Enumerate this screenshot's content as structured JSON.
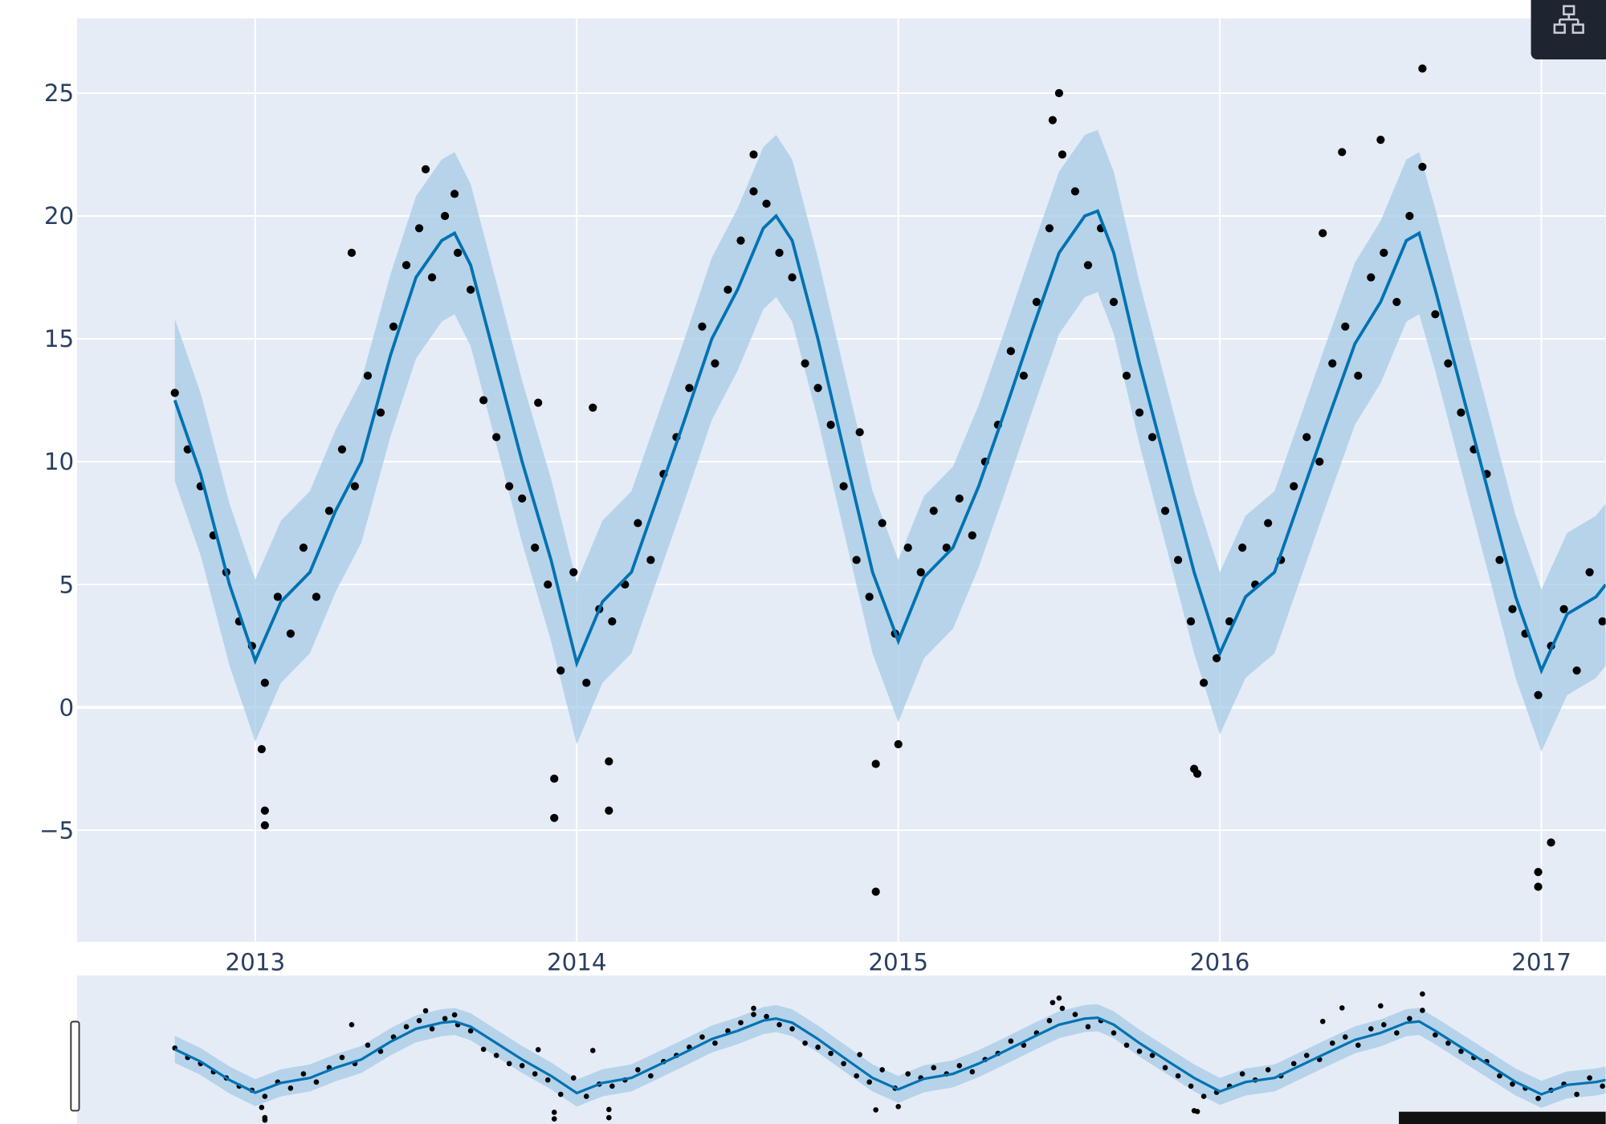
{
  "chart_data": {
    "type": "forecast",
    "xlim": [
      2012.446,
      2017.2
    ],
    "ylim": [
      -9.54,
      28.04
    ],
    "xticks": [
      2013,
      2014,
      2015,
      2016,
      2017
    ],
    "yticks": [
      {
        "value": -5,
        "label": "−5"
      },
      0,
      5,
      10,
      15,
      20,
      25
    ],
    "grid": true,
    "range_slider": true,
    "points": {
      "color": "#000000",
      "x": [
        2012.75,
        2012.79,
        2012.83,
        2012.87,
        2012.91,
        2012.95,
        2012.99,
        2013.03,
        2013.07,
        2013.11,
        2013.15,
        2013.19,
        2013.23,
        2013.27,
        2013.31,
        2013.35,
        2013.39,
        2013.43,
        2013.47,
        2013.51,
        2013.55,
        2013.59,
        2013.63,
        2013.67,
        2013.71,
        2013.75,
        2013.79,
        2013.83,
        2013.87,
        2013.91,
        2013.95,
        2013.99,
        2014.03,
        2014.07,
        2014.11,
        2014.15,
        2014.19,
        2014.23,
        2014.27,
        2014.31,
        2014.35,
        2014.39,
        2014.43,
        2014.47,
        2014.51,
        2014.55,
        2014.59,
        2014.63,
        2014.67,
        2014.71,
        2014.75,
        2014.79,
        2014.83,
        2014.87,
        2014.91,
        2014.95,
        2014.99,
        2015.03,
        2015.07,
        2015.11,
        2015.15,
        2015.19,
        2015.23,
        2015.27,
        2015.31,
        2015.35,
        2015.39,
        2015.43,
        2015.47,
        2015.51,
        2015.55,
        2015.59,
        2015.63,
        2015.67,
        2015.71,
        2015.75,
        2015.79,
        2015.83,
        2015.87,
        2015.91,
        2015.95,
        2015.99,
        2016.03,
        2016.07,
        2016.11,
        2016.15,
        2016.19,
        2016.23,
        2016.27,
        2016.31,
        2016.35,
        2016.39,
        2016.43,
        2016.47,
        2016.51,
        2016.55,
        2016.59,
        2016.63,
        2016.67,
        2016.71,
        2016.75,
        2016.79,
        2016.83,
        2016.87,
        2016.91,
        2016.95,
        2016.99,
        2017.03,
        2017.07,
        2017.11,
        2017.15,
        2017.19,
        2013.03,
        2013.03,
        2013.02,
        2013.93,
        2013.93,
        2014.1,
        2014.1,
        2014.93,
        2014.93,
        2015.0,
        2015.5,
        2015.48,
        2016.63,
        2016.99,
        2016.99,
        2017.03,
        2015.93,
        2015.92,
        2014.05,
        2016.38,
        2016.5,
        2013.62,
        2013.53,
        2014.55,
        2013.3,
        2014.88,
        2016.32,
        2013.88
      ],
      "values": [
        12.8,
        10.5,
        9.0,
        7.0,
        5.5,
        3.5,
        2.5,
        1.0,
        4.5,
        3.0,
        6.5,
        4.5,
        8.0,
        10.5,
        9.0,
        13.5,
        12.0,
        15.5,
        18.0,
        19.5,
        17.5,
        20.0,
        18.5,
        17.0,
        12.5,
        11.0,
        9.0,
        8.5,
        6.5,
        5.0,
        1.5,
        5.5,
        1.0,
        4.0,
        3.5,
        5.0,
        7.5,
        6.0,
        9.5,
        11.0,
        13.0,
        15.5,
        14.0,
        17.0,
        19.0,
        21.0,
        20.5,
        18.5,
        17.5,
        14.0,
        13.0,
        11.5,
        9.0,
        6.0,
        4.5,
        7.5,
        3.0,
        6.5,
        5.5,
        8.0,
        6.5,
        8.5,
        7.0,
        10.0,
        11.5,
        14.5,
        13.5,
        16.5,
        19.5,
        22.5,
        21.0,
        18.0,
        19.5,
        16.5,
        13.5,
        12.0,
        11.0,
        8.0,
        6.0,
        3.5,
        1.0,
        2.0,
        3.5,
        6.5,
        5.0,
        7.5,
        6.0,
        9.0,
        11.0,
        10.0,
        14.0,
        15.5,
        13.5,
        17.5,
        18.5,
        16.5,
        20.0,
        22.0,
        16.0,
        14.0,
        12.0,
        10.5,
        9.5,
        6.0,
        4.0,
        3.0,
        0.5,
        2.5,
        4.0,
        1.5,
        5.5,
        3.5,
        -4.8,
        -4.2,
        -1.7,
        -4.5,
        -2.9,
        -4.2,
        -2.2,
        -7.5,
        -2.3,
        -1.5,
        25.0,
        23.9,
        26.0,
        -7.3,
        -6.7,
        -5.5,
        -2.7,
        -2.5,
        12.2,
        22.6,
        23.1,
        20.9,
        21.9,
        22.5,
        18.5,
        11.2,
        19.3,
        12.4
      ]
    },
    "forecast": {
      "color": "#0072b2",
      "band_color": "#a6cbe6",
      "x": [
        2012.75,
        2012.83,
        2012.92,
        2013.0,
        2013.08,
        2013.17,
        2013.25,
        2013.33,
        2013.42,
        2013.5,
        2013.58,
        2013.62,
        2013.67,
        2013.75,
        2013.83,
        2013.92,
        2014.0,
        2014.08,
        2014.17,
        2014.25,
        2014.33,
        2014.42,
        2014.5,
        2014.58,
        2014.62,
        2014.67,
        2014.75,
        2014.83,
        2014.92,
        2015.0,
        2015.08,
        2015.17,
        2015.25,
        2015.33,
        2015.42,
        2015.5,
        2015.58,
        2015.62,
        2015.67,
        2015.75,
        2015.83,
        2015.92,
        2016.0,
        2016.08,
        2016.17,
        2016.25,
        2016.33,
        2016.42,
        2016.5,
        2016.58,
        2016.62,
        2016.67,
        2016.75,
        2016.83,
        2016.92,
        2017.0,
        2017.08,
        2017.17,
        2017.2
      ],
      "values": [
        12.5,
        9.5,
        5.0,
        1.9,
        4.3,
        5.5,
        8.0,
        10.0,
        14.3,
        17.5,
        19.0,
        19.3,
        18.0,
        14.0,
        10.0,
        6.0,
        1.8,
        4.3,
        5.5,
        8.5,
        11.5,
        15.0,
        17.0,
        19.5,
        20.0,
        19.0,
        15.0,
        10.5,
        5.5,
        2.7,
        5.3,
        6.5,
        9.0,
        12.0,
        15.5,
        18.5,
        20.0,
        20.2,
        18.5,
        14.0,
        10.0,
        5.5,
        2.2,
        4.5,
        5.5,
        8.5,
        11.5,
        14.8,
        16.5,
        19.0,
        19.3,
        17.0,
        13.0,
        9.0,
        4.5,
        1.5,
        3.8,
        4.5,
        5.0
      ],
      "lower": [
        9.2,
        6.2,
        1.7,
        -1.4,
        1.0,
        2.2,
        4.7,
        6.7,
        11.0,
        14.2,
        15.7,
        16.0,
        14.7,
        10.7,
        6.7,
        2.7,
        -1.5,
        1.0,
        2.2,
        5.2,
        8.2,
        11.7,
        13.7,
        16.2,
        16.7,
        15.7,
        11.7,
        7.2,
        2.2,
        -0.6,
        2.0,
        3.2,
        5.7,
        8.7,
        12.2,
        15.2,
        16.7,
        16.9,
        15.2,
        10.7,
        6.7,
        2.2,
        -1.1,
        1.2,
        2.2,
        5.2,
        8.2,
        11.5,
        13.2,
        15.7,
        16.0,
        13.7,
        9.7,
        5.7,
        1.2,
        -1.8,
        0.5,
        1.2,
        1.7
      ],
      "upper": [
        15.8,
        12.8,
        8.3,
        5.2,
        7.6,
        8.8,
        11.3,
        13.3,
        17.6,
        20.8,
        22.3,
        22.6,
        21.3,
        17.3,
        13.3,
        9.3,
        5.1,
        7.6,
        8.8,
        11.8,
        14.8,
        18.3,
        20.3,
        22.8,
        23.3,
        22.3,
        18.3,
        13.8,
        8.8,
        6.0,
        8.6,
        9.8,
        12.3,
        15.3,
        18.8,
        21.8,
        23.3,
        23.5,
        21.8,
        17.3,
        13.3,
        8.8,
        5.5,
        7.8,
        8.8,
        11.8,
        14.8,
        18.1,
        19.8,
        22.3,
        22.6,
        20.3,
        16.3,
        12.3,
        7.8,
        4.8,
        7.1,
        7.8,
        8.3
      ]
    }
  }
}
